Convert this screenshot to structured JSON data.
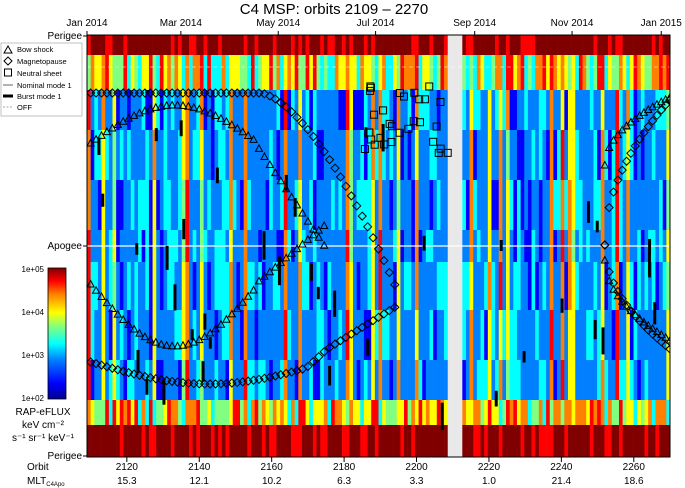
{
  "chart_data": {
    "type": "heatmap",
    "title": "C4 MSP: orbits 2109 – 2270",
    "top_axis": {
      "tick_labels": [
        "Jan 2014",
        "Mar 2014",
        "May 2014",
        "Jul 2014",
        "Sep 2014",
        "Nov 2014",
        "Jan 2015"
      ]
    },
    "y_axis": {
      "labels": [
        "Perigee",
        "Apogee",
        "Perigee"
      ]
    },
    "x_axis": {
      "label": "Orbit",
      "range": [
        2109,
        2270
      ],
      "ticks": [
        2120,
        2140,
        2160,
        2180,
        2200,
        2220,
        2240,
        2260
      ],
      "secondary_label": "MLT",
      "secondary_label_subscript": "C4Apo",
      "secondary_values": [
        "15.3",
        "12.1",
        "10.2",
        "6.3",
        "3.3",
        "1.0",
        "21.4",
        "18.6"
      ]
    },
    "legend": {
      "placement": "top-left",
      "entries": [
        {
          "symbol": "triangle",
          "label": "Bow shock"
        },
        {
          "symbol": "diamond",
          "label": "Magnetopause"
        },
        {
          "symbol": "square",
          "label": "Neutral sheet"
        },
        {
          "symbol": "thin-line",
          "label": "Nominal mode 1"
        },
        {
          "symbol": "thick-line",
          "label": "Burst mode 1"
        },
        {
          "symbol": "dashed-line",
          "label": "OFF"
        }
      ]
    },
    "colorbar": {
      "scale": "log",
      "range": [
        100,
        100000
      ],
      "tick_labels": [
        "1e+05",
        "1e+04",
        "1e+03",
        "1e+02"
      ],
      "label_lines": [
        "RAP-eFLUX",
        "keV cm⁻²",
        "s⁻¹ sr⁻¹ keV⁻¹"
      ],
      "colormap": [
        "#00008f",
        "#0000ff",
        "#0080ff",
        "#00ffff",
        "#80ff80",
        "#ffff00",
        "#ff8000",
        "#ff0000",
        "#800000"
      ]
    },
    "data_gap_orbits": [
      2209,
      2213
    ],
    "boundary_series": [
      {
        "label": "Bow shock",
        "symbol": "triangle",
        "segments": [
          {
            "orbits": [
              2110,
              2175
            ],
            "position": "outbound, near apogee side (upper)"
          },
          {
            "orbits": [
              2110,
              2175
            ],
            "position": "inbound, near apogee side (lower)"
          },
          {
            "orbits": [
              2252,
              2270
            ],
            "position": "upper and lower arcs"
          }
        ]
      },
      {
        "label": "Magnetopause",
        "symbol": "diamond",
        "segments": [
          {
            "orbits": [
              2110,
              2195
            ],
            "position": "upper and lower arcs"
          },
          {
            "orbits": [
              2252,
              2270
            ],
            "position": "upper and lower arcs"
          }
        ]
      },
      {
        "label": "Neutral sheet",
        "symbol": "square",
        "segments": [
          {
            "orbits": [
              2185,
              2210
            ],
            "position": "upper region"
          }
        ]
      }
    ]
  }
}
